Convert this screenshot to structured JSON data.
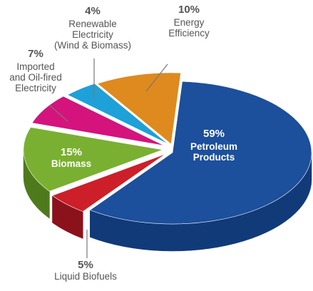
{
  "chart_data": {
    "type": "pie",
    "title": "",
    "style": "3d-exploded",
    "slices": [
      {
        "name": "Petroleum Products",
        "pct_label": "59%",
        "value": 59,
        "color": "#1c4f9c",
        "side_color": "#113a78",
        "label_lines": [
          "Petroleum",
          "Products"
        ],
        "label_color": "#ffffff",
        "label_position": "inside"
      },
      {
        "name": "Liquid Biofuels",
        "pct_label": "5%",
        "value": 5,
        "color": "#cc1f2a",
        "side_color": "#8b121b",
        "label_lines": [
          "Liquid Biofuels"
        ],
        "label_color": "#555555",
        "label_position": "outside"
      },
      {
        "name": "Biomass",
        "pct_label": "15%",
        "value": 15,
        "color": "#7ab031",
        "side_color": "#4f7a1c",
        "label_lines": [
          "Biomass"
        ],
        "label_color": "#ffffff",
        "label_position": "inside"
      },
      {
        "name": "Imported and Oil-fired Electricity",
        "pct_label": "7%",
        "value": 7,
        "color": "#d4137d",
        "side_color": "#8f0c53",
        "label_lines": [
          "Imported",
          "and Oil-fired",
          "Electricity"
        ],
        "label_color": "#555555",
        "label_position": "outside"
      },
      {
        "name": "Renewable Electricity (Wind & Biomass)",
        "pct_label": "4%",
        "value": 4,
        "color": "#1ea0d8",
        "side_color": "#137099",
        "label_lines": [
          "Renewable",
          "Electricity",
          "(Wind & Biomass)"
        ],
        "label_color": "#555555",
        "label_position": "outside"
      },
      {
        "name": "Energy Efficiency",
        "pct_label": "10%",
        "value": 10,
        "color": "#de8a1f",
        "side_color": "#9c5f12",
        "label_lines": [
          "Energy",
          "Efficiency"
        ],
        "label_color": "#555555",
        "label_position": "outside"
      }
    ]
  }
}
